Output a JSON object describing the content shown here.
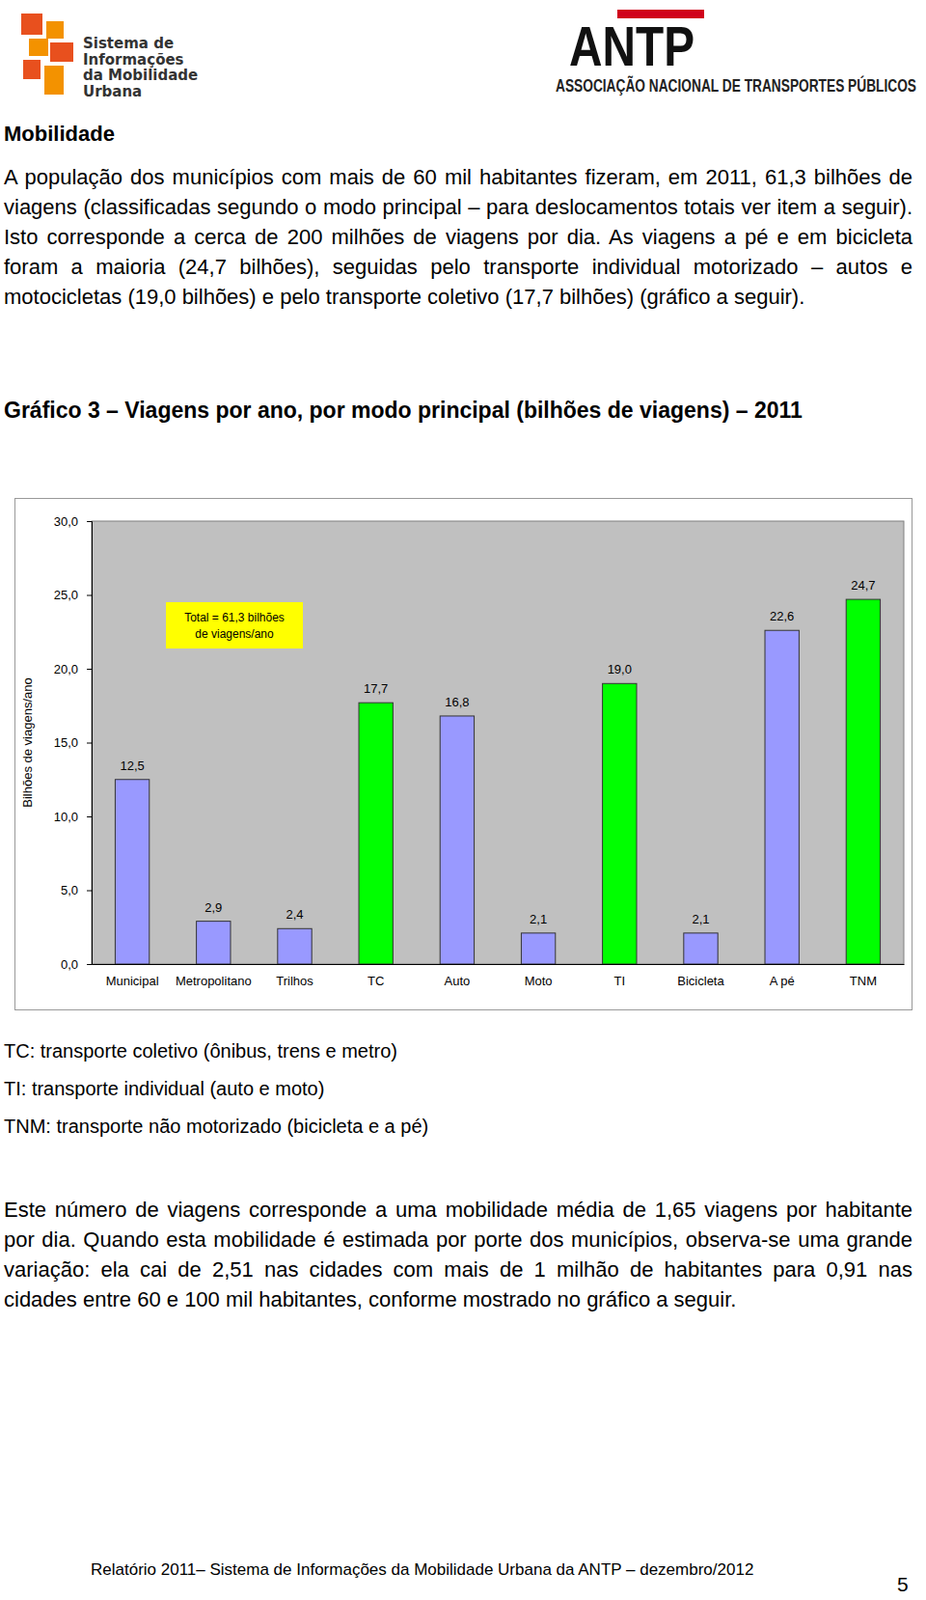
{
  "header": {
    "logo_left": [
      "Sistema de",
      "Informações",
      "da Mobilidade",
      "Urbana"
    ],
    "logo_right_title": "ANTP",
    "logo_right_subtitle": "ASSOCIAÇÃO NACIONAL DE TRANSPORTES PÚBLICOS"
  },
  "section_title": "Mobilidade",
  "paragraphs": [
    "A população dos municípios com mais de 60 mil habitantes fizeram, em 2011, 61,3 bilhões de viagens (classificadas segundo o modo principal – para deslocamentos totais ver item a seguir). Isto corresponde a cerca de 200 milhões de viagens por dia. As viagens a pé e em bicicleta foram a maioria (24,7 bilhões), seguidas pelo transporte individual motorizado – autos e motocicletas (19,0 bilhões) e pelo transporte coletivo (17,7 bilhões) (gráfico a seguir)."
  ],
  "chart_data": {
    "type": "bar",
    "title": "Gráfico 3 – Viagens por ano, por modo principal (bilhões de viagens) – 2011",
    "y_label": "Bilhões de viagens/ano",
    "annotation": [
      "Total = 61,3 bilhões",
      "de viagens/ano"
    ],
    "categories": [
      "Municipal",
      "Metropolitano",
      "Trilhos",
      "TC",
      "Auto",
      "Moto",
      "TI",
      "Bicicleta",
      "A pé",
      "TNM"
    ],
    "values": [
      12.5,
      2.9,
      2.4,
      17.7,
      16.8,
      2.1,
      19.0,
      2.1,
      22.6,
      24.7
    ],
    "value_labels": [
      "12,5",
      "2,9",
      "2,4",
      "17,7",
      "16,8",
      "2,1",
      "19,0",
      "2,1",
      "22,6",
      "24,7"
    ],
    "colors": [
      "#9999ff",
      "#9999ff",
      "#9999ff",
      "#00ff00",
      "#9999ff",
      "#9999ff",
      "#00ff00",
      "#9999ff",
      "#9999ff",
      "#00ff00"
    ],
    "ylim": [
      0,
      30
    ],
    "yticks": [
      {
        "value": 0,
        "label": "0,0"
      },
      {
        "value": 5,
        "label": "5,0"
      },
      {
        "value": 10,
        "label": "10,0"
      },
      {
        "value": 15,
        "label": "15,0"
      },
      {
        "value": 20,
        "label": "20,0"
      },
      {
        "value": 25,
        "label": "25,0"
      },
      {
        "value": 30,
        "label": "30,0"
      }
    ],
    "grid": false,
    "data_labels": true
  },
  "notes": [
    "TC: transporte coletivo (ônibus, trens e metro)",
    "TI: transporte individual (auto e moto)",
    "TNM: transporte não motorizado (bicicleta e a pé)"
  ],
  "closing": "Este número de viagens corresponde a uma mobilidade média de 1,65 viagens por habitante por dia. Quando esta mobilidade é estimada por porte dos municípios, observa-se uma grande variação: ela cai de 2,51 nas cidades com mais de 1 milhão de habitantes para 0,91 nas cidades entre 60 e 100 mil habitantes, conforme mostrado no gráfico a seguir.",
  "footer": {
    "text": "Relatório 2011– Sistema de Informações da Mobilidade Urbana da ANTP – dezembro/2012",
    "page": "5"
  }
}
